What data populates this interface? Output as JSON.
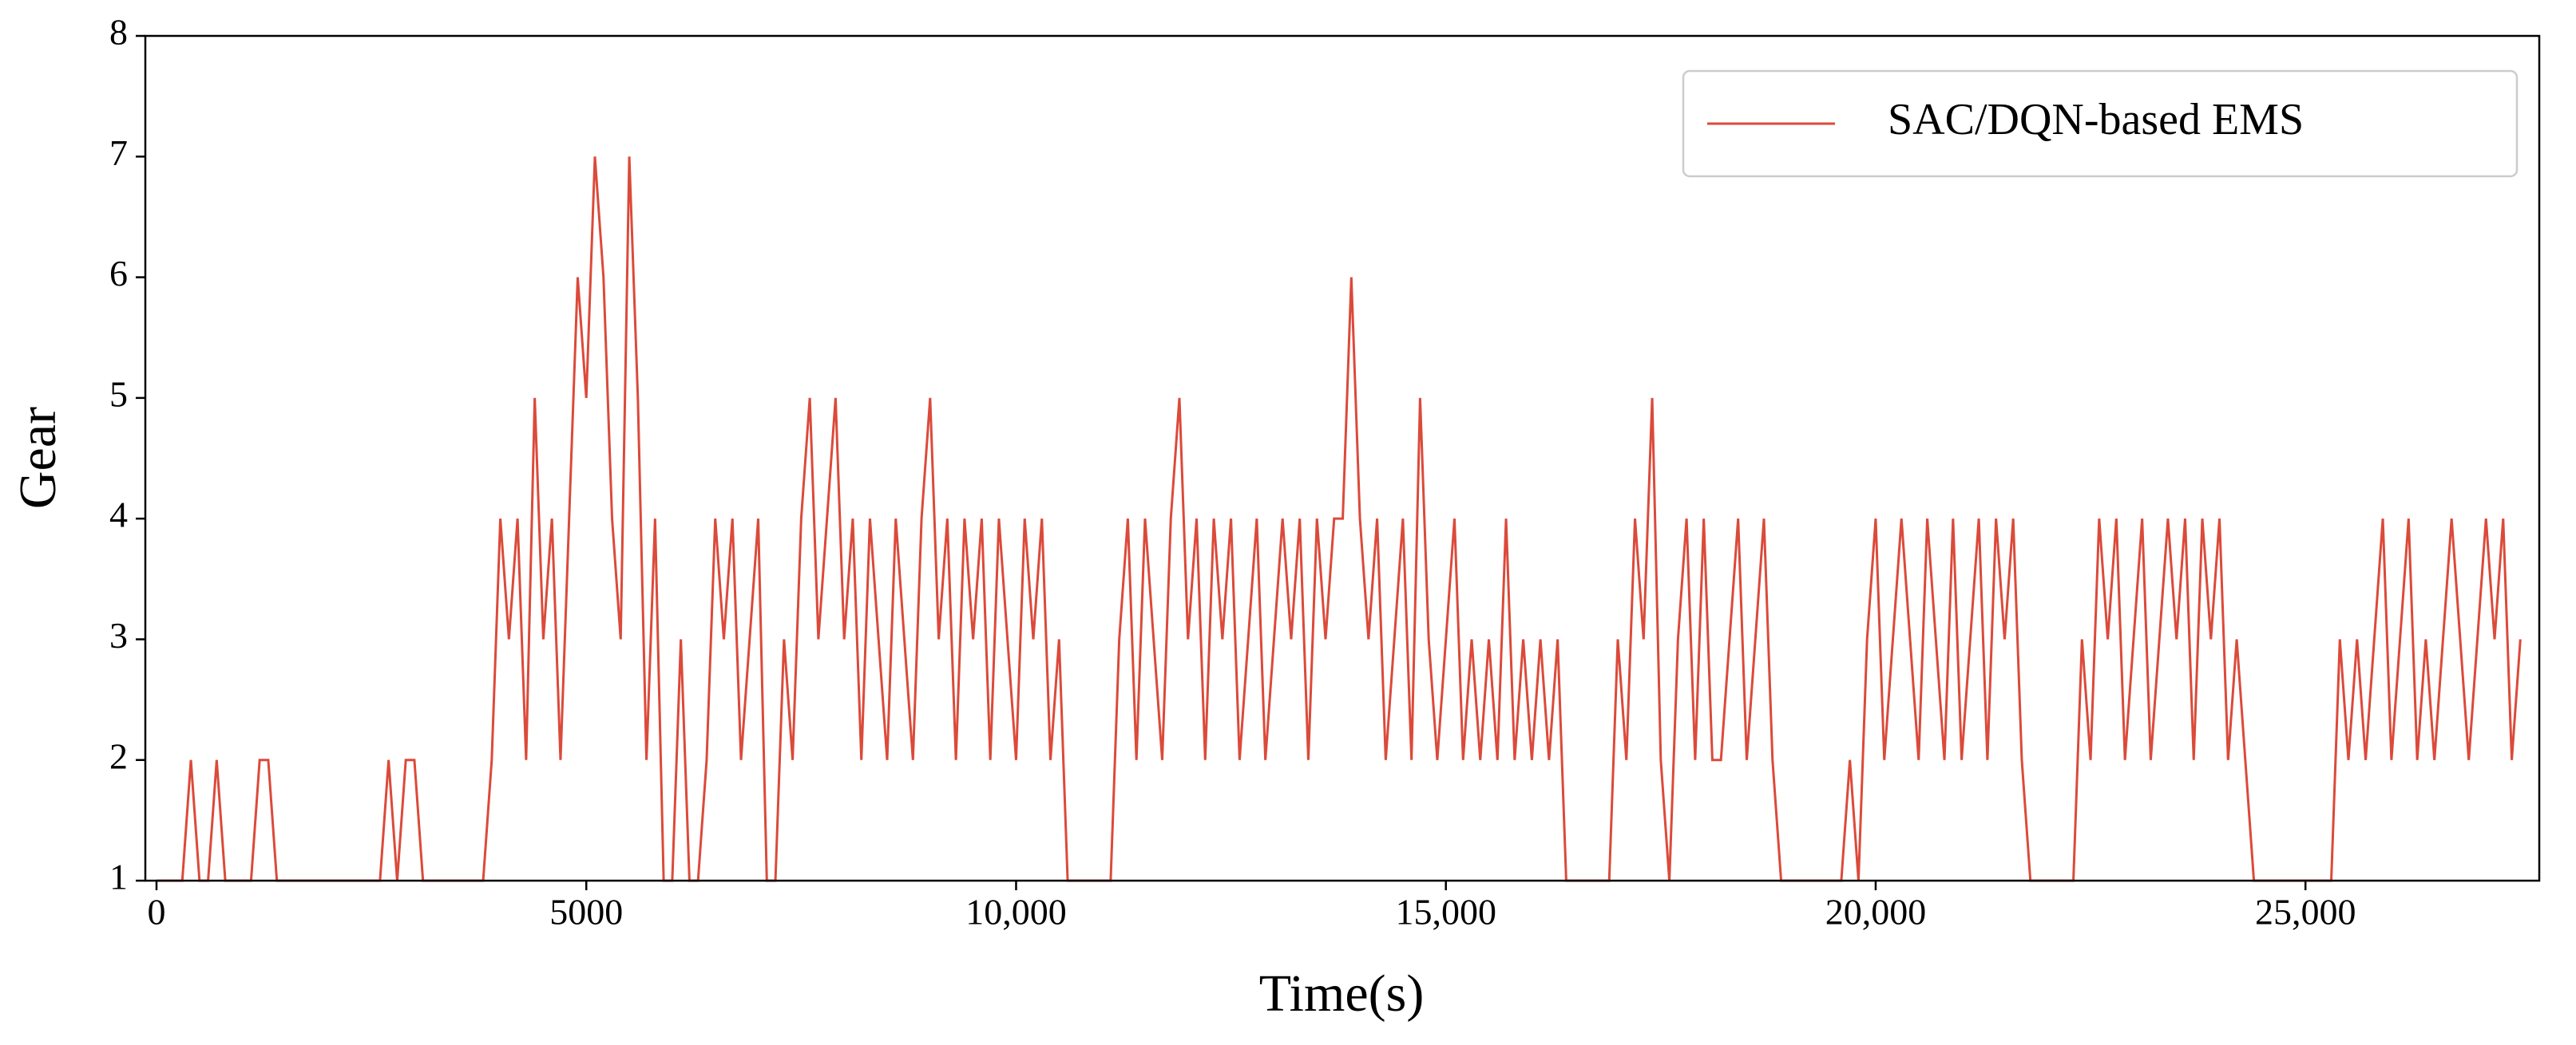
{
  "chart_data": {
    "type": "line",
    "xlabel": "Time(s)",
    "ylabel": "Gear",
    "x": [
      0,
      100,
      200,
      300,
      400,
      500,
      600,
      700,
      800,
      900,
      1000,
      1100,
      1200,
      1300,
      1400,
      1500,
      1600,
      1700,
      1800,
      1900,
      2000,
      2100,
      2200,
      2300,
      2400,
      2500,
      2600,
      2700,
      2800,
      2900,
      3000,
      3100,
      3200,
      3300,
      3400,
      3500,
      3600,
      3700,
      3800,
      3900,
      4000,
      4100,
      4200,
      4300,
      4400,
      4500,
      4600,
      4700,
      4800,
      4900,
      5000,
      5100,
      5200,
      5300,
      5400,
      5500,
      5600,
      5700,
      5800,
      5900,
      6000,
      6100,
      6200,
      6300,
      6400,
      6500,
      6600,
      6700,
      6800,
      6900,
      7000,
      7100,
      7200,
      7300,
      7400,
      7500,
      7600,
      7700,
      7800,
      7900,
      8000,
      8100,
      8200,
      8300,
      8400,
      8500,
      8600,
      8700,
      8800,
      8900,
      9000,
      9100,
      9200,
      9300,
      9400,
      9500,
      9600,
      9700,
      9800,
      9900,
      10000,
      10100,
      10200,
      10300,
      10400,
      10500,
      10600,
      10700,
      10800,
      10900,
      11000,
      11100,
      11200,
      11300,
      11400,
      11500,
      11600,
      11700,
      11800,
      11900,
      12000,
      12100,
      12200,
      12300,
      12400,
      12500,
      12600,
      12700,
      12800,
      12900,
      13000,
      13100,
      13200,
      13300,
      13400,
      13500,
      13600,
      13700,
      13800,
      13900,
      14000,
      14100,
      14200,
      14300,
      14400,
      14500,
      14600,
      14700,
      14800,
      14900,
      15000,
      15100,
      15200,
      15300,
      15400,
      15500,
      15600,
      15700,
      15800,
      15900,
      16000,
      16100,
      16200,
      16300,
      16400,
      16500,
      16600,
      16700,
      16800,
      16900,
      17000,
      17100,
      17200,
      17300,
      17400,
      17500,
      17600,
      17700,
      17800,
      17900,
      18000,
      18100,
      18200,
      18300,
      18400,
      18500,
      18600,
      18700,
      18800,
      18900,
      19000,
      19100,
      19200,
      19300,
      19400,
      19500,
      19600,
      19700,
      19800,
      19900,
      20000,
      20100,
      20200,
      20300,
      20400,
      20500,
      20600,
      20700,
      20800,
      20900,
      21000,
      21100,
      21200,
      21300,
      21400,
      21500,
      21600,
      21700,
      21800,
      21900,
      22000,
      22100,
      22200,
      22300,
      22400,
      22500,
      22600,
      22700,
      22800,
      22900,
      23000,
      23100,
      23200,
      23300,
      23400,
      23500,
      23600,
      23700,
      23800,
      23900,
      24000,
      24100,
      24200,
      24300,
      24400,
      24500,
      24600,
      24700,
      24800,
      24900,
      25000,
      25100,
      25200,
      25300,
      25400,
      25500,
      25600,
      25700,
      25800,
      25900,
      26000,
      26100,
      26200,
      26300,
      26400,
      26500,
      26600,
      26700,
      26800,
      26900,
      27000,
      27100,
      27200,
      27300,
      27400,
      27500
    ],
    "series": [
      {
        "name": "SAC/DQN-based EMS",
        "color": "#db4a3a",
        "values": [
          1,
          1,
          1,
          1,
          2,
          1,
          1,
          2,
          1,
          1,
          1,
          1,
          2,
          2,
          1,
          1,
          1,
          1,
          1,
          1,
          1,
          1,
          1,
          1,
          1,
          1,
          1,
          2,
          1,
          2,
          2,
          1,
          1,
          1,
          1,
          1,
          1,
          1,
          1,
          2,
          4,
          3,
          4,
          2,
          5,
          3,
          4,
          2,
          4,
          6,
          5,
          7,
          6,
          4,
          3,
          7,
          5,
          2,
          4,
          1,
          1,
          3,
          1,
          1,
          2,
          4,
          3,
          4,
          2,
          3,
          4,
          1,
          1,
          3,
          2,
          4,
          5,
          3,
          4,
          5,
          3,
          4,
          2,
          4,
          3,
          2,
          4,
          3,
          2,
          4,
          5,
          3,
          4,
          2,
          4,
          3,
          4,
          2,
          4,
          3,
          2,
          4,
          3,
          4,
          2,
          3,
          1,
          1,
          1,
          1,
          1,
          1,
          3,
          4,
          2,
          4,
          3,
          2,
          4,
          5,
          3,
          4,
          2,
          4,
          3,
          4,
          2,
          3,
          4,
          2,
          3,
          4,
          3,
          4,
          2,
          4,
          3,
          4,
          4,
          6,
          4,
          3,
          4,
          2,
          3,
          4,
          2,
          5,
          3,
          2,
          3,
          4,
          2,
          3,
          2,
          3,
          2,
          4,
          2,
          3,
          2,
          3,
          2,
          3,
          1,
          1,
          1,
          1,
          1,
          1,
          3,
          2,
          4,
          3,
          5,
          2,
          1,
          3,
          4,
          2,
          4,
          2,
          2,
          3,
          4,
          2,
          3,
          4,
          2,
          1,
          1,
          1,
          1,
          1,
          1,
          1,
          1,
          2,
          1,
          3,
          4,
          2,
          3,
          4,
          3,
          2,
          4,
          3,
          2,
          4,
          2,
          3,
          4,
          2,
          4,
          3,
          4,
          2,
          1,
          1,
          1,
          1,
          1,
          1,
          3,
          2,
          4,
          3,
          4,
          2,
          3,
          4,
          2,
          3,
          4,
          3,
          4,
          2,
          4,
          3,
          4,
          2,
          3,
          2,
          1,
          1,
          1,
          1,
          1,
          1,
          1,
          1,
          1,
          1,
          3,
          2,
          3,
          2,
          3,
          4,
          2,
          3,
          4,
          2,
          3,
          2,
          3,
          4,
          3,
          2,
          3,
          4,
          3,
          4,
          2,
          3
        ]
      }
    ],
    "xlim": [
      -130,
      27720
    ],
    "ylim": [
      1,
      8
    ],
    "xticks": [
      0,
      5000,
      {
        "value": 10000,
        "label": "10,000"
      },
      {
        "value": 15000,
        "label": "15,000"
      },
      {
        "value": 20000,
        "label": "20,000"
      },
      {
        "value": 25000,
        "label": "25,000"
      }
    ],
    "yticks": [
      1,
      2,
      3,
      4,
      5,
      6,
      7,
      8
    ],
    "legend": "upper right"
  }
}
